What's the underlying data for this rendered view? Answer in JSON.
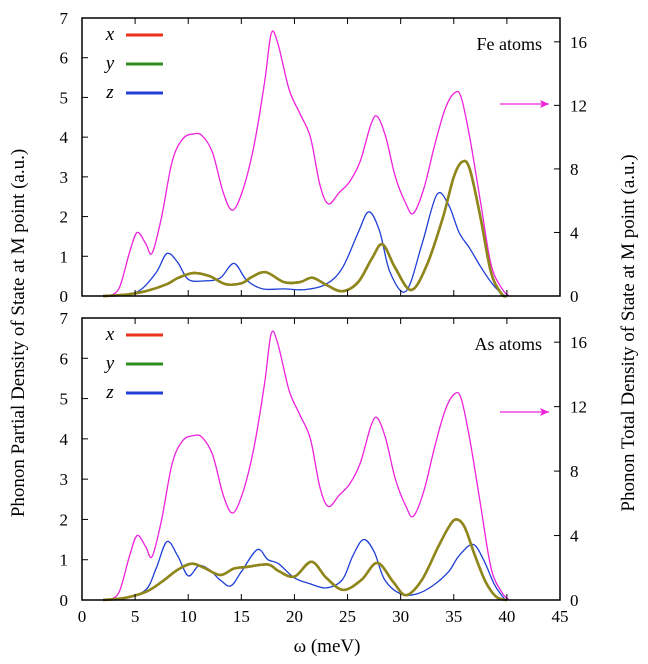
{
  "colors": {
    "x": "#e8321e",
    "y": "#2e8b1e",
    "xy_overlap": "#8a8a1a",
    "z": "#1f3fd6",
    "total": "#ee22dd",
    "arrow": "#ee22dd",
    "axes": "#000000"
  },
  "chart_data": [
    {
      "type": "line",
      "panel_label": "Fe atoms",
      "legend": [
        "x",
        "y",
        "z"
      ],
      "xlabel": "ω (meV)",
      "ylabel": "Phonon Partial Density of State at M point (a.u.)",
      "y2label": "Phonon Total Density of State at M point (a.u.)",
      "xlim": [
        0,
        45
      ],
      "ylim": [
        0,
        7
      ],
      "y2lim": [
        0,
        17.5
      ],
      "xticks": [
        0,
        5,
        10,
        15,
        20,
        25,
        30,
        35,
        40,
        45
      ],
      "yticks": [
        0,
        1,
        2,
        3,
        4,
        5,
        6,
        7
      ],
      "y2ticks": [
        0,
        4,
        8,
        12,
        16
      ],
      "annotation": "arrow pointing to right axis (total DOS)",
      "series": [
        {
          "name": "x",
          "axis": "left",
          "x": [
            2,
            4,
            6,
            8,
            9,
            10.5,
            12,
            13.5,
            15,
            16,
            17.3,
            19,
            20.5,
            21.7,
            23,
            24.5,
            26,
            27.3,
            28.3,
            29.5,
            31,
            32.5,
            34,
            35,
            35.8,
            36.5,
            37.5,
            38.5,
            39.5,
            40
          ],
          "y": [
            0,
            0.03,
            0.12,
            0.3,
            0.45,
            0.58,
            0.5,
            0.3,
            0.32,
            0.48,
            0.6,
            0.35,
            0.35,
            0.46,
            0.28,
            0.12,
            0.35,
            0.95,
            1.3,
            0.7,
            0.15,
            0.8,
            2.0,
            3.0,
            3.38,
            3.2,
            2.0,
            0.6,
            0.05,
            0
          ]
        },
        {
          "name": "y",
          "axis": "left",
          "x": [
            2,
            4,
            6,
            8,
            9,
            10.5,
            12,
            13.5,
            15,
            16,
            17.3,
            19,
            20.5,
            21.7,
            23,
            24.5,
            26,
            27.3,
            28.3,
            29.5,
            31,
            32.5,
            34,
            35,
            35.8,
            36.5,
            37.5,
            38.5,
            39.5,
            40
          ],
          "y": [
            0,
            0.03,
            0.12,
            0.3,
            0.45,
            0.58,
            0.5,
            0.3,
            0.32,
            0.48,
            0.6,
            0.35,
            0.35,
            0.46,
            0.28,
            0.12,
            0.35,
            0.95,
            1.3,
            0.7,
            0.15,
            0.8,
            2.0,
            3.0,
            3.38,
            3.2,
            2.0,
            0.6,
            0.05,
            0
          ]
        },
        {
          "name": "z",
          "axis": "left",
          "x": [
            2,
            4,
            5.5,
            7,
            8,
            9,
            10,
            11.5,
            13,
            14.3,
            15.5,
            17,
            19,
            21,
            23,
            24.5,
            26,
            27,
            28,
            29,
            30.5,
            32,
            33.4,
            34.5,
            35.5,
            36.5,
            37.5,
            38.5,
            39.5,
            40
          ],
          "y": [
            0,
            0.03,
            0.15,
            0.6,
            1.07,
            0.85,
            0.42,
            0.38,
            0.45,
            0.82,
            0.4,
            0.18,
            0.18,
            0.16,
            0.3,
            0.7,
            1.6,
            2.12,
            1.65,
            0.6,
            0.12,
            1.3,
            2.55,
            2.3,
            1.6,
            1.2,
            0.75,
            0.35,
            0.06,
            0
          ]
        },
        {
          "name": "total",
          "axis": "right",
          "x": [
            2.5,
            3.5,
            4.5,
            5.2,
            6,
            6.6,
            7.5,
            8.5,
            9.5,
            10.5,
            11.3,
            12.3,
            13.3,
            14.2,
            15.2,
            16.2,
            17.2,
            17.8,
            18.4,
            19.5,
            20.5,
            21.5,
            22.4,
            23.2,
            24.2,
            25.2,
            26.2,
            27.2,
            27.8,
            28.6,
            29.5,
            30.5,
            31.2,
            32.2,
            33.2,
            34.2,
            35.1,
            35.7,
            36.5,
            37.5,
            38.5,
            39.5,
            40.2
          ],
          "y": [
            0,
            0.5,
            2.8,
            4.0,
            3.3,
            2.7,
            5.0,
            8.5,
            9.9,
            10.2,
            10.1,
            9.0,
            6.5,
            5.4,
            6.8,
            9.5,
            13.5,
            16.5,
            16.0,
            13.0,
            11.5,
            10.0,
            7.0,
            5.8,
            6.5,
            7.2,
            8.5,
            10.8,
            11.3,
            10.0,
            7.5,
            5.8,
            5.2,
            6.8,
            9.5,
            11.8,
            12.8,
            12.5,
            10.0,
            6.0,
            2.0,
            0.5,
            0
          ]
        }
      ]
    },
    {
      "type": "line",
      "panel_label": "As atoms",
      "legend": [
        "x",
        "y",
        "z"
      ],
      "xlabel": "ω (meV)",
      "ylabel": "Phonon Partial Density of State at M point (a.u.)",
      "y2label": "Phonon Total Density of State at M point (a.u.)",
      "xlim": [
        0,
        45
      ],
      "ylim": [
        0,
        7
      ],
      "y2lim": [
        0,
        17.5
      ],
      "xticks": [
        0,
        5,
        10,
        15,
        20,
        25,
        30,
        35,
        40,
        45
      ],
      "yticks": [
        0,
        1,
        2,
        3,
        4,
        5,
        6,
        7
      ],
      "y2ticks": [
        0,
        4,
        8,
        12,
        16
      ],
      "annotation": "arrow pointing to right axis (total DOS)",
      "series": [
        {
          "name": "x",
          "axis": "left",
          "x": [
            2,
            4,
            6,
            7.5,
            9,
            10.3,
            11.5,
            13,
            14.3,
            15.5,
            17.5,
            18.5,
            20,
            21.6,
            23,
            24.6,
            26.3,
            27.8,
            29.3,
            30.5,
            32,
            33.5,
            34.5,
            35.2,
            36,
            37,
            38,
            39,
            40
          ],
          "y": [
            0,
            0.05,
            0.2,
            0.45,
            0.75,
            0.9,
            0.8,
            0.62,
            0.78,
            0.82,
            0.88,
            0.72,
            0.58,
            0.95,
            0.55,
            0.25,
            0.5,
            0.92,
            0.45,
            0.12,
            0.5,
            1.3,
            1.8,
            2.0,
            1.82,
            1.1,
            0.45,
            0.08,
            0
          ]
        },
        {
          "name": "y",
          "axis": "left",
          "x": [
            2,
            4,
            6,
            7.5,
            9,
            10.3,
            11.5,
            13,
            14.3,
            15.5,
            17.5,
            18.5,
            20,
            21.6,
            23,
            24.6,
            26.3,
            27.8,
            29.3,
            30.5,
            32,
            33.5,
            34.5,
            35.2,
            36,
            37,
            38,
            39,
            40
          ],
          "y": [
            0,
            0.05,
            0.2,
            0.45,
            0.75,
            0.9,
            0.8,
            0.62,
            0.78,
            0.82,
            0.88,
            0.72,
            0.58,
            0.95,
            0.55,
            0.25,
            0.5,
            0.92,
            0.45,
            0.12,
            0.5,
            1.3,
            1.8,
            2.0,
            1.82,
            1.1,
            0.45,
            0.08,
            0
          ]
        },
        {
          "name": "z",
          "axis": "left",
          "x": [
            2,
            4,
            6,
            7,
            8,
            9,
            10,
            11,
            12,
            13,
            14,
            15,
            16.5,
            17.5,
            18.5,
            20,
            21.5,
            23,
            24.5,
            25.5,
            26.5,
            27.5,
            28.5,
            30,
            31.5,
            33,
            34.5,
            35.5,
            36.8,
            37.8,
            38.8,
            39.7,
            40
          ],
          "y": [
            0,
            0.05,
            0.25,
            0.8,
            1.45,
            1.1,
            0.6,
            0.85,
            0.75,
            0.5,
            0.35,
            0.7,
            1.25,
            1.0,
            0.9,
            0.55,
            0.4,
            0.3,
            0.5,
            1.1,
            1.5,
            1.2,
            0.5,
            0.15,
            0.15,
            0.35,
            0.7,
            1.1,
            1.38,
            1.0,
            0.4,
            0.05,
            0
          ]
        },
        {
          "name": "total",
          "axis": "right",
          "x": [
            2.5,
            3.5,
            4.5,
            5.2,
            6,
            6.6,
            7.5,
            8.5,
            9.5,
            10.5,
            11.3,
            12.3,
            13.3,
            14.2,
            15.2,
            16.2,
            17.2,
            17.8,
            18.4,
            19.5,
            20.5,
            21.5,
            22.4,
            23.2,
            24.2,
            25.2,
            26.2,
            27.2,
            27.8,
            28.6,
            29.5,
            30.5,
            31.2,
            32.2,
            33.2,
            34.2,
            35.1,
            35.7,
            36.5,
            37.5,
            38.5,
            39.5,
            40.2
          ],
          "y": [
            0,
            0.5,
            2.8,
            4.0,
            3.3,
            2.7,
            5.0,
            8.5,
            9.9,
            10.2,
            10.1,
            9.0,
            6.5,
            5.4,
            6.8,
            9.5,
            13.5,
            16.5,
            16.0,
            13.0,
            11.5,
            10.0,
            7.0,
            5.8,
            6.5,
            7.2,
            8.5,
            10.8,
            11.3,
            10.0,
            7.5,
            5.8,
            5.2,
            6.8,
            9.5,
            11.8,
            12.8,
            12.5,
            10.0,
            6.0,
            2.0,
            0.5,
            0
          ]
        }
      ]
    }
  ]
}
